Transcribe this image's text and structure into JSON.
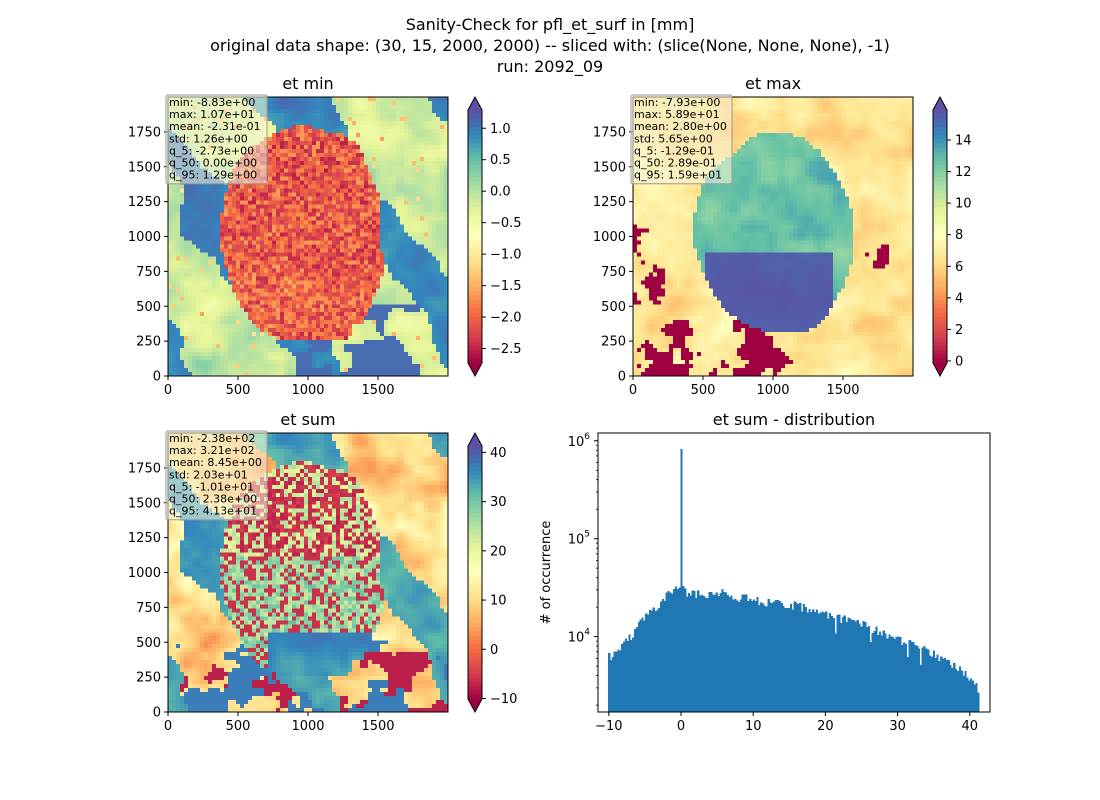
{
  "figure": {
    "title_lines": [
      "Sanity-Check for pfl_et_surf in [mm]",
      "original data shape: (30, 15, 2000, 2000) -- sliced with: (slice(None, None, None), -1)",
      "run: 2092_09"
    ]
  },
  "colormap": {
    "name": "Spectral",
    "stops": [
      "#9e0142",
      "#d53e4f",
      "#f46d43",
      "#fdae61",
      "#fee08b",
      "#ffffbf",
      "#e6f598",
      "#abdda4",
      "#66c2a5",
      "#3288bd",
      "#5e4fa2"
    ],
    "under_color": "#9e0142",
    "over_color": "#5e4fa2"
  },
  "chart_data": [
    {
      "type": "heatmap",
      "title": "et min",
      "x_ticks": [
        "0",
        "500",
        "1000",
        "1500"
      ],
      "y_ticks": [
        "0",
        "250",
        "500",
        "750",
        "1000",
        "1250",
        "1500",
        "1750"
      ],
      "xlim": [
        0,
        2000
      ],
      "ylim": [
        0,
        2000
      ],
      "stats": [
        "min: -8.83e+00",
        "max: 1.07e+01",
        "mean: -2.31e-01",
        "std: 1.26e+00",
        "q_5: -2.73e+00",
        "q_50: 0.00e+00",
        "q_95: 1.29e+00"
      ],
      "colorbar": {
        "vmin": -2.73,
        "vmax": 1.29,
        "ticks": [
          1.0,
          0.5,
          0.0,
          -0.5,
          -1.0,
          -1.5,
          -2.0,
          -2.5
        ],
        "tick_labels": [
          "1.0",
          "0.5",
          "0.0",
          "−0.5",
          "−1.0",
          "−1.5",
          "−2.0",
          "−2.5"
        ]
      },
      "pattern": "min"
    },
    {
      "type": "heatmap",
      "title": "et max",
      "x_ticks": [
        "0",
        "500",
        "1000",
        "1500"
      ],
      "y_ticks": [
        "0",
        "250",
        "500",
        "750",
        "1000",
        "1250",
        "1500",
        "1750"
      ],
      "xlim": [
        0,
        2000
      ],
      "ylim": [
        0,
        2000
      ],
      "stats": [
        "min: -7.93e+00",
        "max: 5.89e+01",
        "mean: 2.80e+00",
        "std: 5.65e+00",
        "q_5: -1.29e-01",
        "q_50: 2.89e-01",
        "q_95: 1.59e+01"
      ],
      "colorbar": {
        "vmin": -0.129,
        "vmax": 15.9,
        "ticks": [
          14,
          12,
          10,
          8,
          6,
          4,
          2,
          0
        ],
        "tick_labels": [
          "14",
          "12",
          "10",
          "8",
          "6",
          "4",
          "2",
          "0"
        ]
      },
      "pattern": "max"
    },
    {
      "type": "heatmap",
      "title": "et sum",
      "x_ticks": [
        "0",
        "500",
        "1000",
        "1500"
      ],
      "y_ticks": [
        "0",
        "250",
        "500",
        "750",
        "1000",
        "1250",
        "1500",
        "1750"
      ],
      "xlim": [
        0,
        2000
      ],
      "ylim": [
        0,
        2000
      ],
      "stats": [
        "min: -2.38e+02",
        "max: 3.21e+02",
        "mean: 8.45e+00",
        "std: 2.03e+01",
        "q_5: -1.01e+01",
        "q_50: 2.38e+00",
        "q_95: 4.13e+01"
      ],
      "colorbar": {
        "vmin": -10.1,
        "vmax": 41.3,
        "ticks": [
          40,
          30,
          20,
          10,
          0,
          -10
        ],
        "tick_labels": [
          "40",
          "30",
          "20",
          "10",
          "0",
          "−10"
        ]
      },
      "pattern": "sum"
    },
    {
      "type": "bar",
      "title": "et sum - distribution",
      "ylabel": "# of occurrence",
      "xlabel": "",
      "y_scale": "log",
      "xlim": [
        -11.5,
        42.8
      ],
      "ylim": [
        1700,
        1200000
      ],
      "x_ticks": [
        -10,
        0,
        10,
        20,
        30,
        40
      ],
      "x_tick_labels": [
        "−10",
        "0",
        "10",
        "20",
        "30",
        "40"
      ],
      "y_ticks": [
        10000,
        100000,
        1000000
      ],
      "y_tick_labels": [
        [
          "10",
          "4"
        ],
        [
          "10",
          "5"
        ],
        [
          "10",
          "6"
        ]
      ],
      "bin_range": [
        -10.1,
        41.3
      ],
      "bin_count": 200,
      "bar_color": "#1f77b4",
      "spike": {
        "x": 0.0,
        "value": 820000
      },
      "profile": [
        [
          -10.1,
          6200
        ],
        [
          -9,
          7000
        ],
        [
          -8,
          8200
        ],
        [
          -7,
          10000
        ],
        [
          -6,
          12500
        ],
        [
          -5,
          15500
        ],
        [
          -4,
          18500
        ],
        [
          -3,
          22000
        ],
        [
          -2,
          26000
        ],
        [
          -1,
          29500
        ],
        [
          -0.3,
          34000
        ],
        [
          0.5,
          29000
        ],
        [
          2,
          27000
        ],
        [
          4,
          26500
        ],
        [
          6,
          28000
        ],
        [
          8,
          25500
        ],
        [
          10,
          23500
        ],
        [
          12,
          22500
        ],
        [
          14,
          21500
        ],
        [
          16,
          20500
        ],
        [
          18,
          18500
        ],
        [
          20,
          17000
        ],
        [
          22,
          15500
        ],
        [
          24,
          14000
        ],
        [
          26,
          12500
        ],
        [
          28,
          11000
        ],
        [
          30,
          9600
        ],
        [
          32,
          8400
        ],
        [
          34,
          7300
        ],
        [
          36,
          6200
        ],
        [
          38,
          5000
        ],
        [
          40,
          3800
        ],
        [
          41.3,
          2800
        ]
      ]
    }
  ]
}
